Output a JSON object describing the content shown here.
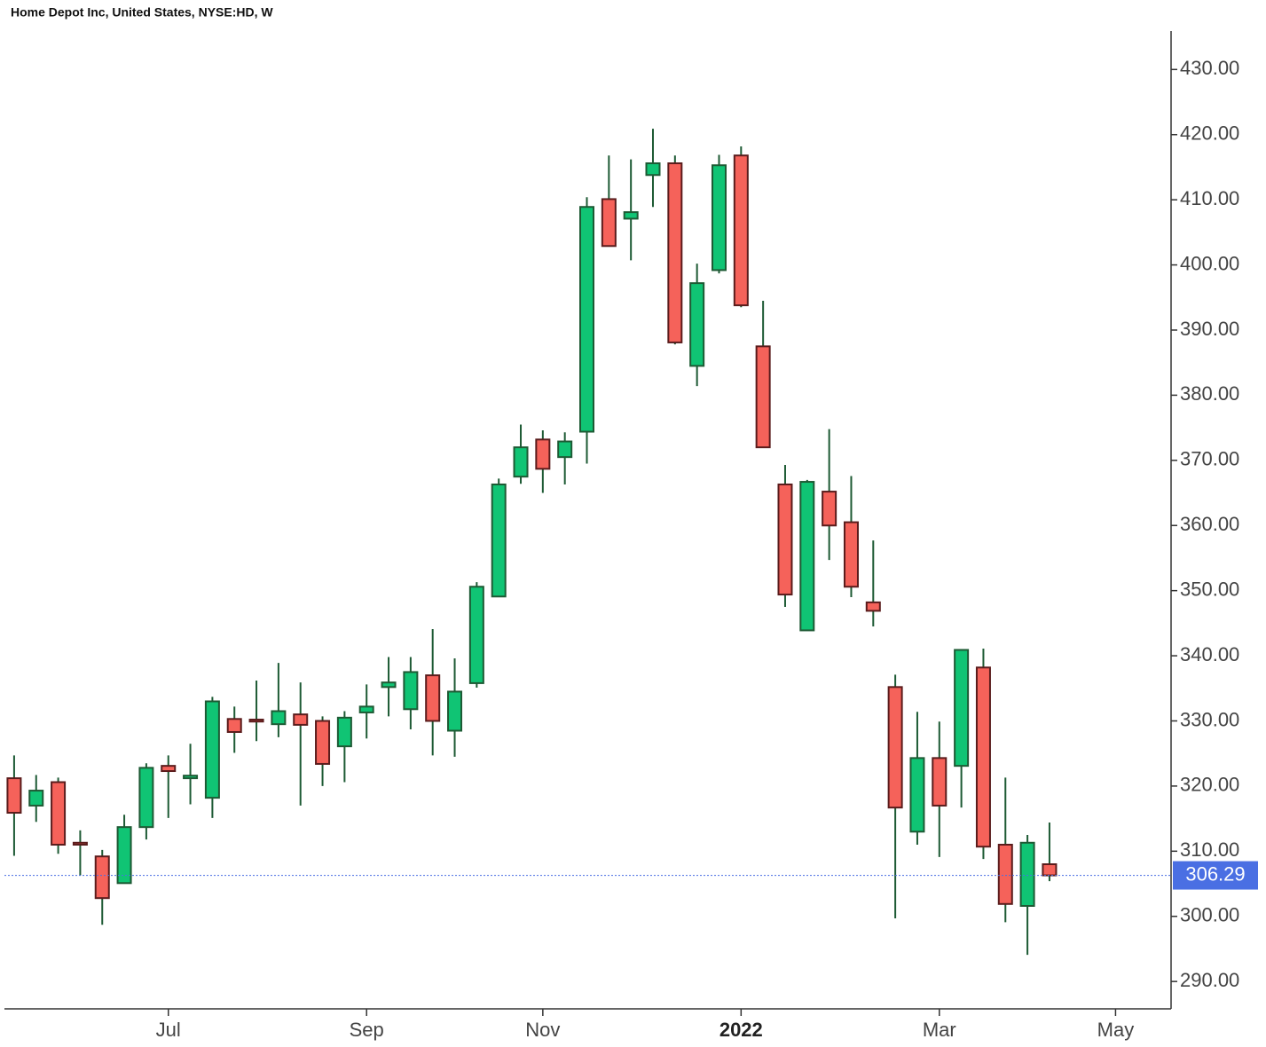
{
  "chart_data": {
    "type": "candlestick",
    "title": "Home Depot Inc, United States, NYSE:HD, W",
    "x": [
      0,
      1,
      2,
      3,
      4,
      5,
      6,
      7,
      8,
      9,
      10,
      11,
      12,
      13,
      14,
      15,
      16,
      17,
      18,
      19,
      20,
      21,
      22,
      23,
      24,
      25,
      26,
      27,
      28,
      29,
      30,
      31,
      32,
      33,
      34,
      35,
      36,
      37,
      38,
      39,
      40,
      41,
      42,
      43,
      44,
      45,
      46,
      47
    ],
    "open": [
      321.2,
      317.0,
      320.6,
      311.3,
      309.2,
      305.1,
      313.7,
      323.1,
      321.2,
      318.2,
      330.3,
      330.2,
      329.5,
      331.0,
      330.0,
      326.1,
      331.3,
      335.2,
      331.8,
      337.0,
      328.5,
      335.8,
      349.1,
      367.5,
      373.2,
      370.5,
      374.4,
      410.1,
      407.1,
      413.8,
      415.6,
      384.5,
      399.2,
      416.8,
      387.5,
      366.3,
      343.9,
      365.2,
      360.5,
      348.2,
      335.2,
      313.0,
      324.3,
      323.1,
      338.2,
      311.0,
      301.6,
      308.0
    ],
    "high": [
      324.7,
      321.7,
      321.3,
      313.2,
      310.2,
      315.6,
      323.5,
      324.7,
      326.5,
      333.7,
      332.2,
      336.2,
      338.9,
      335.9,
      330.7,
      331.5,
      335.6,
      339.8,
      339.8,
      344.1,
      339.6,
      351.3,
      367.2,
      375.5,
      374.6,
      374.3,
      410.4,
      416.8,
      416.2,
      420.9,
      416.8,
      400.2,
      416.9,
      418.2,
      394.5,
      369.3,
      367.0,
      374.8,
      367.6,
      357.7,
      337.1,
      331.4,
      329.9,
      340.9,
      341.1,
      321.3,
      312.5,
      314.4
    ],
    "low": [
      309.3,
      314.5,
      309.6,
      306.3,
      298.7,
      305.0,
      311.8,
      315.1,
      317.2,
      315.1,
      325.1,
      326.9,
      327.5,
      317.0,
      320.0,
      320.6,
      327.3,
      330.7,
      328.7,
      324.7,
      324.5,
      335.1,
      349.0,
      366.4,
      365.0,
      366.3,
      369.5,
      402.9,
      400.7,
      408.9,
      387.8,
      381.4,
      398.7,
      393.5,
      372.0,
      347.5,
      343.9,
      354.7,
      349.0,
      344.5,
      299.7,
      311.0,
      309.1,
      316.7,
      308.8,
      299.1,
      294.1,
      305.4
    ],
    "close": [
      315.9,
      319.3,
      311.0,
      311.0,
      302.8,
      313.7,
      322.8,
      322.3,
      321.6,
      333.0,
      328.3,
      329.9,
      331.5,
      329.4,
      323.4,
      330.5,
      332.2,
      335.9,
      337.5,
      330.0,
      334.5,
      350.6,
      366.3,
      372.0,
      368.7,
      372.9,
      408.9,
      402.9,
      408.1,
      415.6,
      388.1,
      397.2,
      415.3,
      393.8,
      372.0,
      349.4,
      366.7,
      360.0,
      350.6,
      346.9,
      316.7,
      324.3,
      317.0,
      340.9,
      310.7,
      301.9,
      311.3,
      306.29
    ],
    "up_color": "#10c474",
    "down_color": "#f5625a",
    "ylim": [
      285.8,
      435.9
    ],
    "yticks": [
      {
        "value": 290,
        "label": "290.00"
      },
      {
        "value": 300,
        "label": "300.00"
      },
      {
        "value": 310,
        "label": "310.00"
      },
      {
        "value": 320,
        "label": "320.00"
      },
      {
        "value": 330,
        "label": "330.00"
      },
      {
        "value": 340,
        "label": "340.00"
      },
      {
        "value": 350,
        "label": "350.00"
      },
      {
        "value": 360,
        "label": "360.00"
      },
      {
        "value": 370,
        "label": "370.00"
      },
      {
        "value": 380,
        "label": "380.00"
      },
      {
        "value": 390,
        "label": "390.00"
      },
      {
        "value": 400,
        "label": "400.00"
      },
      {
        "value": 410,
        "label": "410.00"
      },
      {
        "value": 420,
        "label": "420.00"
      },
      {
        "value": 430,
        "label": "430.00"
      }
    ],
    "xlim": [
      -0.44,
      52.52
    ],
    "xticks": [
      {
        "value": 7,
        "label": "Jul"
      },
      {
        "value": 16,
        "label": "Sep"
      },
      {
        "value": 24,
        "label": "Nov"
      },
      {
        "value": 33,
        "label": "2022"
      },
      {
        "value": 42,
        "label": "Mar"
      },
      {
        "value": 50,
        "label": "May"
      }
    ],
    "last_value": 306.29,
    "last_color": "#4a6fe3"
  }
}
